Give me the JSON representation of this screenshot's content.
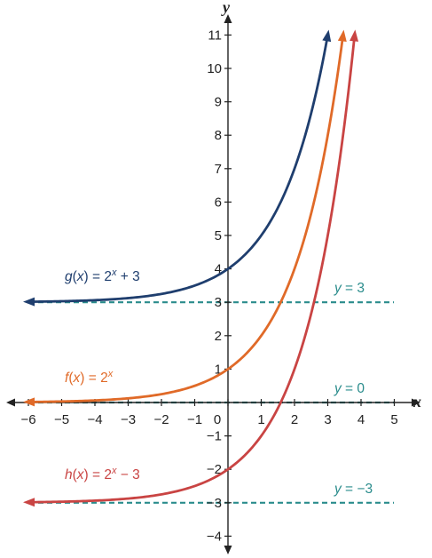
{
  "chart_data": {
    "type": "line",
    "xlabel": "x",
    "ylabel": "y",
    "xlim": [
      -6,
      5
    ],
    "ylim": [
      -4,
      11
    ],
    "x_ticks": [
      {
        "value": -6,
        "label": "−6"
      },
      {
        "value": -5,
        "label": "−5"
      },
      {
        "value": -4,
        "label": "−4"
      },
      {
        "value": -3,
        "label": "−3"
      },
      {
        "value": -2,
        "label": "−2"
      },
      {
        "value": -1,
        "label": "−1"
      },
      {
        "value": 0,
        "label": "0"
      },
      {
        "value": 1,
        "label": "1"
      },
      {
        "value": 2,
        "label": "2"
      },
      {
        "value": 3,
        "label": "3"
      },
      {
        "value": 4,
        "label": "4"
      },
      {
        "value": 5,
        "label": "5"
      }
    ],
    "y_ticks": [
      {
        "value": -4,
        "label": "−4"
      },
      {
        "value": -3,
        "label": "−3"
      },
      {
        "value": -2,
        "label": "−2"
      },
      {
        "value": -1,
        "label": "−1"
      },
      {
        "value": 1,
        "label": "1"
      },
      {
        "value": 2,
        "label": "2"
      },
      {
        "value": 3,
        "label": "3"
      },
      {
        "value": 4,
        "label": "4"
      },
      {
        "value": 5,
        "label": "5"
      },
      {
        "value": 6,
        "label": "6"
      },
      {
        "value": 7,
        "label": "7"
      },
      {
        "value": 8,
        "label": "8"
      },
      {
        "value": 9,
        "label": "9"
      },
      {
        "value": 10,
        "label": "10"
      },
      {
        "value": 11,
        "label": "11"
      }
    ],
    "grid": false,
    "series": [
      {
        "id": "g",
        "shift": 3,
        "color": "#1f3e6e",
        "label_name": "g",
        "label_rhs": "2",
        "label_exp": "x",
        "label_tail": " + 3",
        "x": [
          -6,
          -5,
          -4,
          -3,
          -2,
          -1,
          0,
          1,
          2,
          2.5,
          3
        ],
        "y": [
          3.02,
          3.03,
          3.06,
          3.13,
          3.25,
          3.5,
          4,
          5,
          7,
          8.66,
          11
        ]
      },
      {
        "id": "f",
        "shift": 0,
        "color": "#e06a28",
        "label_name": "f",
        "label_rhs": "2",
        "label_exp": "x",
        "label_tail": "",
        "x": [
          -6,
          -5,
          -4,
          -3,
          -2,
          -1,
          0,
          1,
          2,
          3,
          3.46
        ],
        "y": [
          0.02,
          0.03,
          0.06,
          0.13,
          0.25,
          0.5,
          1,
          2,
          4,
          8,
          11
        ]
      },
      {
        "id": "h",
        "shift": -3,
        "color": "#c94443",
        "label_name": "h",
        "label_rhs": "2",
        "label_exp": "x",
        "label_tail": " − 3",
        "x": [
          -6,
          -5,
          -4,
          -3,
          -2,
          -1,
          0,
          1,
          2,
          3,
          3.81
        ],
        "y": [
          -2.98,
          -2.97,
          -2.94,
          -2.87,
          -2.75,
          -2.5,
          -2,
          -1,
          1,
          5,
          11
        ]
      }
    ],
    "asymptotes": [
      {
        "y": 3,
        "label_var": "y",
        "label_rest": " = 3"
      },
      {
        "y": 0,
        "label_var": "y",
        "label_rest": " = 0"
      },
      {
        "y": -3,
        "label_var": "y",
        "label_rest": " = −3"
      }
    ],
    "colors": {
      "asymptote": "#2a8c8c",
      "axis": "#222222"
    }
  }
}
